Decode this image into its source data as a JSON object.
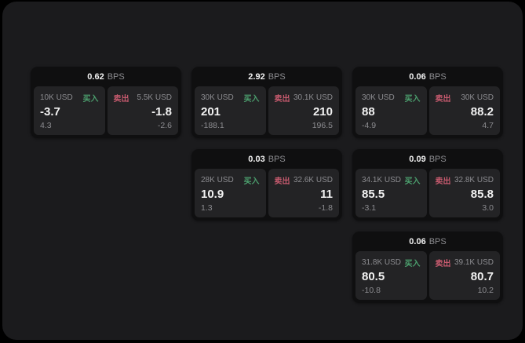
{
  "labels": {
    "buy": "买入",
    "sell": "卖出",
    "bps_unit": "BPS"
  },
  "colors": {
    "buy_green": "#4c9f6e",
    "sell_red": "#c65a6e",
    "surface": "#1b1b1d",
    "card": "#0f0f10",
    "panel": "#232325"
  },
  "cards": [
    {
      "bps": "0.62",
      "bps_unit": "BPS",
      "buy": {
        "amount": "10K USD",
        "value": "-3.7",
        "sub": "4.3"
      },
      "sell": {
        "amount": "5.5K USD",
        "value": "-1.8",
        "sub": "-2.6"
      }
    },
    {
      "bps": "2.92",
      "bps_unit": "BPS",
      "buy": {
        "amount": "30K USD",
        "value": "201",
        "sub": "-188.1"
      },
      "sell": {
        "amount": "30.1K USD",
        "value": "210",
        "sub": "196.5"
      }
    },
    {
      "bps": "0.06",
      "bps_unit": "BPS",
      "buy": {
        "amount": "30K USD",
        "value": "88",
        "sub": "-4.9"
      },
      "sell": {
        "amount": "30K USD",
        "value": "88.2",
        "sub": "4.7"
      }
    },
    {
      "bps": "0.03",
      "bps_unit": "BPS",
      "buy": {
        "amount": "28K USD",
        "value": "10.9",
        "sub": "1.3"
      },
      "sell": {
        "amount": "32.6K USD",
        "value": "11",
        "sub": "-1.8"
      }
    },
    {
      "bps": "0.09",
      "bps_unit": "BPS",
      "buy": {
        "amount": "34.1K USD",
        "value": "85.5",
        "sub": "-3.1"
      },
      "sell": {
        "amount": "32.8K USD",
        "value": "85.8",
        "sub": "3.0"
      }
    },
    {
      "bps": "0.06",
      "bps_unit": "BPS",
      "buy": {
        "amount": "31.8K USD",
        "value": "80.5",
        "sub": "-10.8"
      },
      "sell": {
        "amount": "39.1K USD",
        "value": "80.7",
        "sub": "10.2"
      }
    }
  ]
}
